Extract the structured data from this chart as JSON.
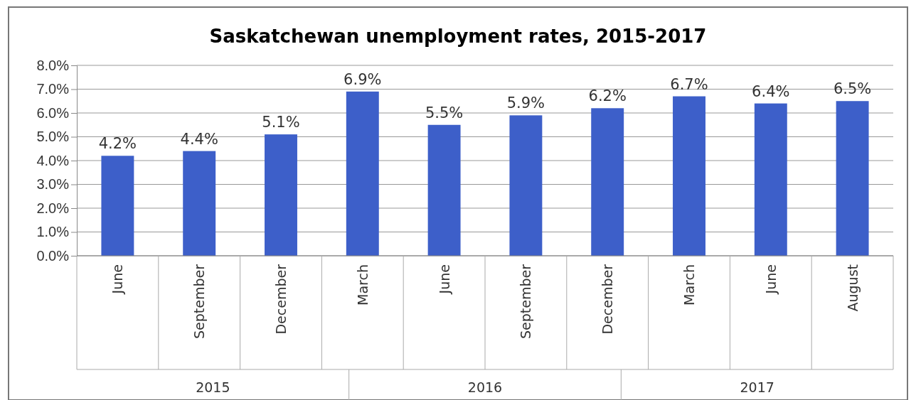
{
  "chart_data": {
    "type": "bar",
    "title": "Saskatchewan unemployment rates, 2015-2017",
    "categories": [
      "June",
      "September",
      "December",
      "March",
      "June",
      "September",
      "December",
      "March",
      "June",
      "August"
    ],
    "values": [
      4.2,
      4.4,
      5.1,
      6.9,
      5.5,
      5.9,
      6.2,
      6.7,
      6.4,
      6.5
    ],
    "color": "#3d5fc9",
    "ylim": [
      0,
      8
    ],
    "yticks": [
      {
        "value": 0,
        "label": "0.0%"
      },
      {
        "value": 1,
        "label": "1.0%"
      },
      {
        "value": 2,
        "label": "2.0%"
      },
      {
        "value": 3,
        "label": "3.0%"
      },
      {
        "value": 4,
        "label": "4.0%"
      },
      {
        "value": 5,
        "label": "5.0%"
      },
      {
        "value": 6,
        "label": "6.0%"
      },
      {
        "value": 7,
        "label": "7.0%"
      },
      {
        "value": 8,
        "label": "8.0%"
      }
    ],
    "value_labels": [
      "4.2%",
      "4.4%",
      "5.1%",
      "6.9%",
      "5.5%",
      "5.9%",
      "6.2%",
      "6.7%",
      "6.4%",
      "6.5%"
    ],
    "grid": "y",
    "annotations": [
      "2015",
      "2016",
      "2017"
    ]
  }
}
